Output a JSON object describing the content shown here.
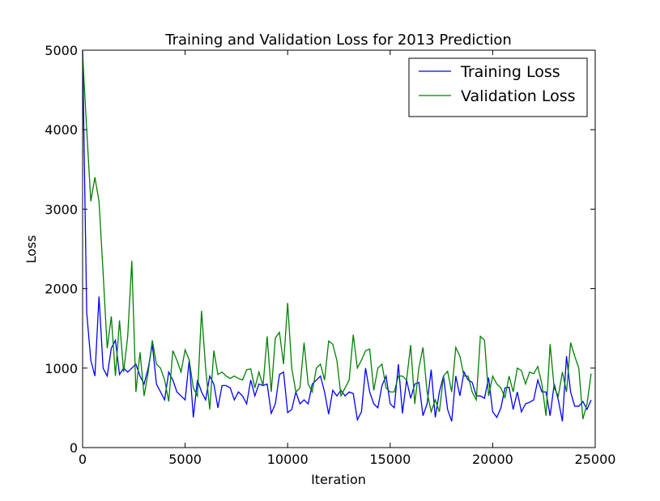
{
  "chart_data": {
    "type": "line",
    "title": "Training and Validation Loss for 2013 Prediction",
    "x_label": "Iteration",
    "y_label": "Loss",
    "xlim": [
      0,
      25000
    ],
    "ylim": [
      0,
      5000
    ],
    "xticks": [
      0,
      5000,
      10000,
      15000,
      20000,
      25000
    ],
    "yticks": [
      0,
      1000,
      2000,
      3000,
      4000,
      5000
    ],
    "legend": "upper-right",
    "x": [
      0,
      200,
      400,
      600,
      800,
      1000,
      1200,
      1400,
      1600,
      1800,
      2000,
      2200,
      2400,
      2600,
      2800,
      3000,
      3200,
      3400,
      3600,
      3800,
      4000,
      4200,
      4400,
      4600,
      4800,
      5000,
      5200,
      5400,
      5600,
      5800,
      6000,
      6200,
      6400,
      6600,
      6800,
      7000,
      7200,
      7400,
      7600,
      7800,
      8000,
      8200,
      8400,
      8600,
      8800,
      9000,
      9200,
      9400,
      9600,
      9800,
      10000,
      10200,
      10400,
      10600,
      10800,
      11000,
      11200,
      11400,
      11600,
      11800,
      12000,
      12200,
      12400,
      12600,
      12800,
      13000,
      13200,
      13400,
      13600,
      13800,
      14000,
      14200,
      14400,
      14600,
      14800,
      15000,
      15200,
      15400,
      15600,
      15800,
      16000,
      16200,
      16400,
      16600,
      16800,
      17000,
      17200,
      17400,
      17600,
      17800,
      18000,
      18200,
      18400,
      18600,
      18800,
      19000,
      19200,
      19400,
      19600,
      19800,
      20000,
      20200,
      20400,
      20600,
      20800,
      21000,
      21200,
      21400,
      21600,
      21800,
      22000,
      22200,
      22400,
      22600,
      22800,
      23000,
      23200,
      23400,
      23600,
      23800,
      24000,
      24200,
      24400,
      24600,
      24800
    ],
    "series": [
      {
        "name": "Training Loss",
        "color": "#0000ff",
        "values": [
          5000,
          1700,
          1100,
          900,
          1900,
          1000,
          900,
          1250,
          1350,
          920,
          1000,
          950,
          1000,
          1050,
          900,
          800,
          1000,
          1300,
          800,
          700,
          600,
          950,
          850,
          700,
          650,
          600,
          1100,
          380,
          850,
          700,
          600,
          900,
          800,
          500,
          780,
          780,
          750,
          600,
          700,
          650,
          550,
          850,
          650,
          800,
          780,
          800,
          430,
          550,
          920,
          950,
          440,
          480,
          700,
          550,
          600,
          550,
          800,
          850,
          900,
          700,
          420,
          720,
          650,
          720,
          650,
          700,
          680,
          350,
          450,
          1000,
          700,
          550,
          500,
          780,
          900,
          550,
          500,
          1050,
          430,
          850,
          620,
          800,
          820,
          400,
          550,
          980,
          380,
          700,
          900,
          480,
          330,
          900,
          650,
          950,
          850,
          820,
          650,
          650,
          620,
          880,
          450,
          380,
          500,
          750,
          760,
          480,
          700,
          450,
          550,
          570,
          600,
          850,
          700,
          700,
          400,
          800,
          600,
          330,
          1150,
          700,
          520,
          520,
          580,
          480,
          600
        ]
      },
      {
        "name": "Validation Loss",
        "color": "#008000",
        "values": [
          4950,
          4000,
          3100,
          3400,
          3100,
          2200,
          1250,
          1650,
          900,
          1600,
          950,
          1400,
          2350,
          700,
          1200,
          650,
          950,
          1350,
          1050,
          1000,
          850,
          580,
          1220,
          1100,
          950,
          1230,
          1100,
          750,
          650,
          1720,
          1000,
          480,
          1220,
          920,
          950,
          900,
          870,
          900,
          870,
          850,
          980,
          990,
          750,
          950,
          780,
          1400,
          700,
          1380,
          1450,
          1050,
          1820,
          1000,
          700,
          750,
          1320,
          800,
          700,
          1000,
          1050,
          850,
          1340,
          1300,
          1100,
          650,
          750,
          850,
          1420,
          1000,
          1100,
          1220,
          1240,
          720,
          1000,
          1050,
          750,
          700,
          700,
          900,
          900,
          850,
          1290,
          550,
          1000,
          1260,
          700,
          450,
          600,
          450,
          900,
          960,
          700,
          1260,
          1150,
          900,
          900,
          700,
          600,
          1400,
          1350,
          650,
          900,
          800,
          750,
          630,
          900,
          700,
          1000,
          970,
          800,
          950,
          930,
          1020,
          800,
          400,
          1300,
          750,
          650,
          950,
          700,
          1320,
          1150,
          1000,
          360,
          550,
          930
        ]
      }
    ]
  }
}
